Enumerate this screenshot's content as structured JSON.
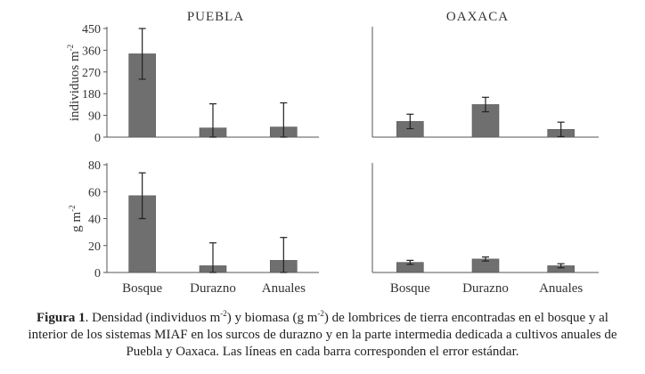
{
  "chart_data": [
    {
      "type": "bar",
      "panel": "puebla-density",
      "title": "PUEBLA",
      "ylabel": "individuos",
      "ylabel_unit": "m",
      "ylabel_exp": "-2",
      "ylim": [
        0,
        450
      ],
      "yticks": [
        "450",
        "360",
        "270",
        "180",
        "90",
        "0"
      ],
      "tick_values": [
        450,
        360,
        270,
        180,
        90,
        0
      ],
      "categories": [
        "Bosque",
        "Durazno",
        "Anuales"
      ],
      "values": [
        345,
        38,
        42
      ],
      "errors": [
        105,
        100,
        100
      ]
    },
    {
      "type": "bar",
      "panel": "oaxaca-density",
      "title": "OAXACA",
      "ylim": [
        0,
        450
      ],
      "categories": [
        "Bosque",
        "Durazno",
        "Anuales"
      ],
      "values": [
        65,
        135,
        32
      ],
      "errors": [
        30,
        30,
        30
      ]
    },
    {
      "type": "bar",
      "panel": "puebla-biomass",
      "ylabel": "g m",
      "ylabel_exp": "-2",
      "ylim": [
        0,
        80
      ],
      "yticks": [
        "80",
        "60",
        "40",
        "20",
        "0"
      ],
      "tick_values": [
        80,
        60,
        40,
        20,
        0
      ],
      "categories": [
        "Bosque",
        "Durazno",
        "Anuales"
      ],
      "xlabels": [
        "Bosque",
        "Durazno",
        "Anuales"
      ],
      "values": [
        57,
        5,
        9
      ],
      "errors": [
        17,
        17,
        17
      ]
    },
    {
      "type": "bar",
      "panel": "oaxaca-biomass",
      "ylim": [
        0,
        80
      ],
      "categories": [
        "Bosque",
        "Durazno",
        "Anuales"
      ],
      "xlabels": [
        "Bosque",
        "Durazno",
        "Anuales"
      ],
      "values": [
        7.5,
        10,
        5
      ],
      "errors": [
        1.5,
        1.5,
        1.5
      ]
    }
  ],
  "caption": {
    "label": "Figura 1",
    "t1": ". Densidad (individuos m",
    "exp1": "-2",
    "t2": ") y biomasa (g m",
    "exp2": "-2",
    "t3": ") de lombrices de tierra encontradas en el bosque y al interior de los sistemas MIAF en los surcos de durazno y en la parte intermedia dedicada a cultivos anuales de Puebla y Oaxaca. Las líneas en cada barra corresponden el error estándar."
  },
  "colors": {
    "bar": "#6f6f6f",
    "axis": "#555555",
    "text": "#333333"
  }
}
